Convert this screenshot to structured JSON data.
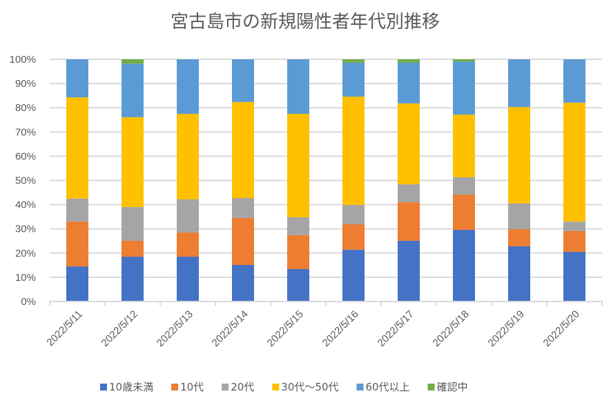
{
  "chart_data": {
    "type": "bar",
    "stacked": "percent",
    "title": "宮古島市の新規陽性者年代別推移",
    "xlabel": "",
    "ylabel": "",
    "ylim": [
      0,
      100
    ],
    "yticks": [
      "0%",
      "10%",
      "20%",
      "30%",
      "40%",
      "50%",
      "60%",
      "70%",
      "80%",
      "90%",
      "100%"
    ],
    "grid": true,
    "legend_position": "bottom",
    "categories": [
      "2022/5/11",
      "2022/5/12",
      "2022/5/13",
      "2022/5/14",
      "2022/5/15",
      "2022/5/16",
      "2022/5/17",
      "2022/5/18",
      "2022/5/19",
      "2022/5/20"
    ],
    "series": [
      {
        "name": "10歳未満",
        "color": "#4472c4",
        "values": [
          14.5,
          18.5,
          18.5,
          15.1,
          13.4,
          21.4,
          25.1,
          29.6,
          22.8,
          20.5
        ]
      },
      {
        "name": "10代",
        "color": "#ed7d31",
        "values": [
          18.5,
          6.6,
          10.0,
          19.4,
          14.0,
          10.5,
          15.9,
          14.6,
          7.1,
          8.6
        ]
      },
      {
        "name": "20代",
        "color": "#a5a5a5",
        "values": [
          9.5,
          13.9,
          13.7,
          8.2,
          7.4,
          8.0,
          7.4,
          7.1,
          10.6,
          3.9
        ]
      },
      {
        "name": "30代～50代",
        "color": "#ffc000",
        "values": [
          41.8,
          37.1,
          35.3,
          39.7,
          42.7,
          44.7,
          33.4,
          25.9,
          39.8,
          49.1
        ]
      },
      {
        "name": "60代以上",
        "color": "#5b9bd5",
        "values": [
          15.7,
          22.1,
          22.5,
          17.6,
          22.5,
          14.0,
          16.8,
          21.9,
          19.7,
          17.9
        ]
      },
      {
        "name": "確認中",
        "color": "#70ad47",
        "values": [
          0,
          1.8,
          0,
          0,
          0,
          1.4,
          1.4,
          0.9,
          0,
          0
        ]
      }
    ]
  }
}
